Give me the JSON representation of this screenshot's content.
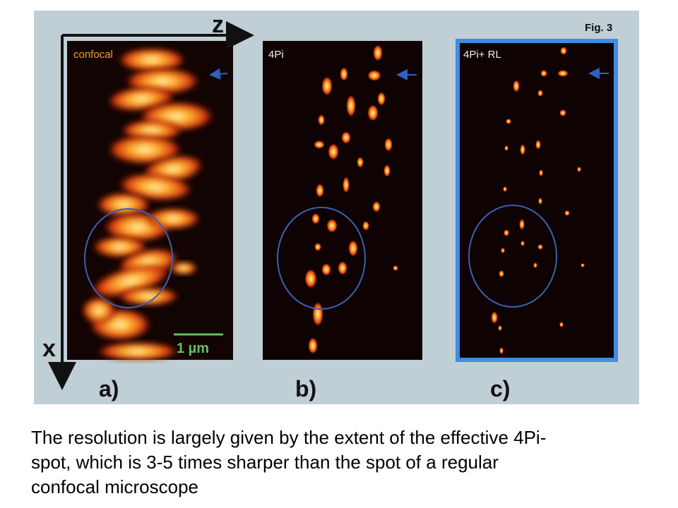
{
  "figure": {
    "label": "Fig. 3",
    "axis_z": "z",
    "axis_x": "x",
    "scale_bar": "1 µm",
    "panels": [
      {
        "label": "confocal",
        "letter": "a)"
      },
      {
        "label": "4Pi",
        "letter": "b)"
      },
      {
        "label": "4Pi+ RL",
        "letter": "c)"
      }
    ]
  },
  "caption": {
    "lines": [
      "The resolution is largely given by the extent of the effective 4Pi-",
      "spot, which is 3-5 times sharper than the spot of a regular",
      "confocal microscope"
    ]
  }
}
